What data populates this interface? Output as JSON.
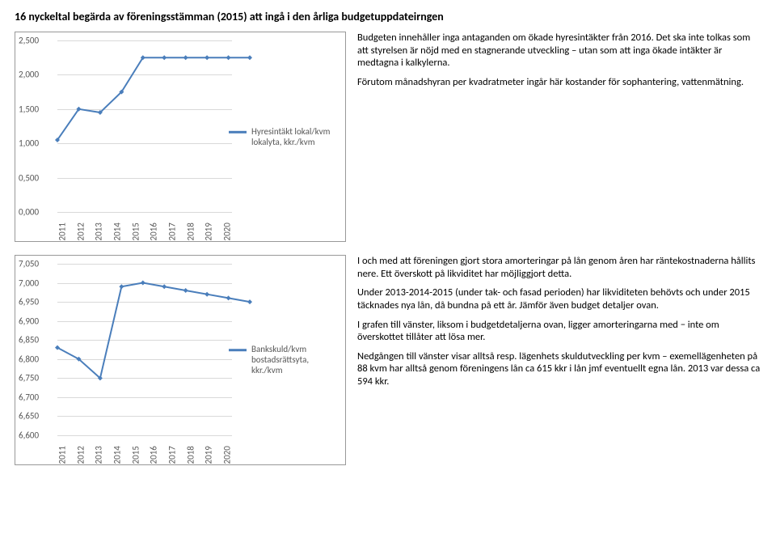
{
  "page": {
    "title": "16 nyckeltal begärda av föreningsstämman (2015) att ingå i den årliga budgetuppdateirngen"
  },
  "chart1": {
    "type": "line",
    "legend_label": "Hyresintäkt lokal/kvm lokalyta, kkr./kvm",
    "line_color": "#4a7ebb",
    "marker_color": "#4a7ebb",
    "grid_color": "#d9d9d9",
    "background_color": "#ffffff",
    "y_ticks": [
      "0,000",
      "0,500",
      "1,000",
      "1,500",
      "2,000",
      "2,500"
    ],
    "ylim": [
      0,
      2.5
    ],
    "x_labels": [
      "2011",
      "2012",
      "2013",
      "2014",
      "2015",
      "2016",
      "2017",
      "2018",
      "2019",
      "2020"
    ],
    "values": [
      1.05,
      1.5,
      1.45,
      1.75,
      2.25,
      2.25,
      2.25,
      2.25,
      2.25,
      2.25
    ],
    "marker_style": "diamond",
    "marker_size": 6,
    "line_width": 2
  },
  "text1": {
    "p1": "Budgeten innehåller inga antaganden om ökade hyresintäkter från 2016. Det ska inte tolkas som att styrelsen är nöjd med en stagnerande utveckling – utan som att inga ökade intäkter är medtagna i kalkylerna.",
    "p2": "Förutom månadshyran per kvadratmeter ingår här kostander för sophantering, vattenmätning."
  },
  "chart2": {
    "type": "line",
    "legend_label": "Bankskuld/kvm bostadsrättsyta, kkr./kvm",
    "line_color": "#4a7ebb",
    "marker_color": "#4a7ebb",
    "grid_color": "#d9d9d9",
    "background_color": "#ffffff",
    "y_ticks": [
      "6,600",
      "6,650",
      "6,700",
      "6,750",
      "6,800",
      "6,850",
      "6,900",
      "6,950",
      "7,000",
      "7,050"
    ],
    "ylim": [
      6.6,
      7.05
    ],
    "x_labels": [
      "2011",
      "2012",
      "2013",
      "2014",
      "2015",
      "2016",
      "2017",
      "2018",
      "2019",
      "2020"
    ],
    "values": [
      6.83,
      6.8,
      6.75,
      6.99,
      7.0,
      6.99,
      6.98,
      6.97,
      6.96,
      6.95
    ],
    "marker_style": "diamond",
    "marker_size": 6,
    "line_width": 2
  },
  "text2": {
    "p1": "I och med att föreningen gjort stora amorteringar på lån genom åren har räntekostnaderna hållits nere. Ett överskott på likviditet har möjliggjort detta.",
    "p2": "Under 2013-2014-2015 (under tak- och fasad perioden) har likviditeten behövts och under 2015 täcknades nya lån, då bundna på ett år. Jämför även budget detaljer ovan.",
    "p3": "I grafen till vänster, liksom i budgetdetaljerna ovan, ligger amorteringarna med − inte om överskottet tillåter att lösa mer.",
    "p4": "Nedgången till vänster visar alltså resp. lägenhets skuldutveckling per kvm – exemellägenheten på 88 kvm har alltså genom föreningens lån ca 615 kkr i lån jmf eventuellt egna lån. 2013 var dessa ca 594 kkr."
  }
}
